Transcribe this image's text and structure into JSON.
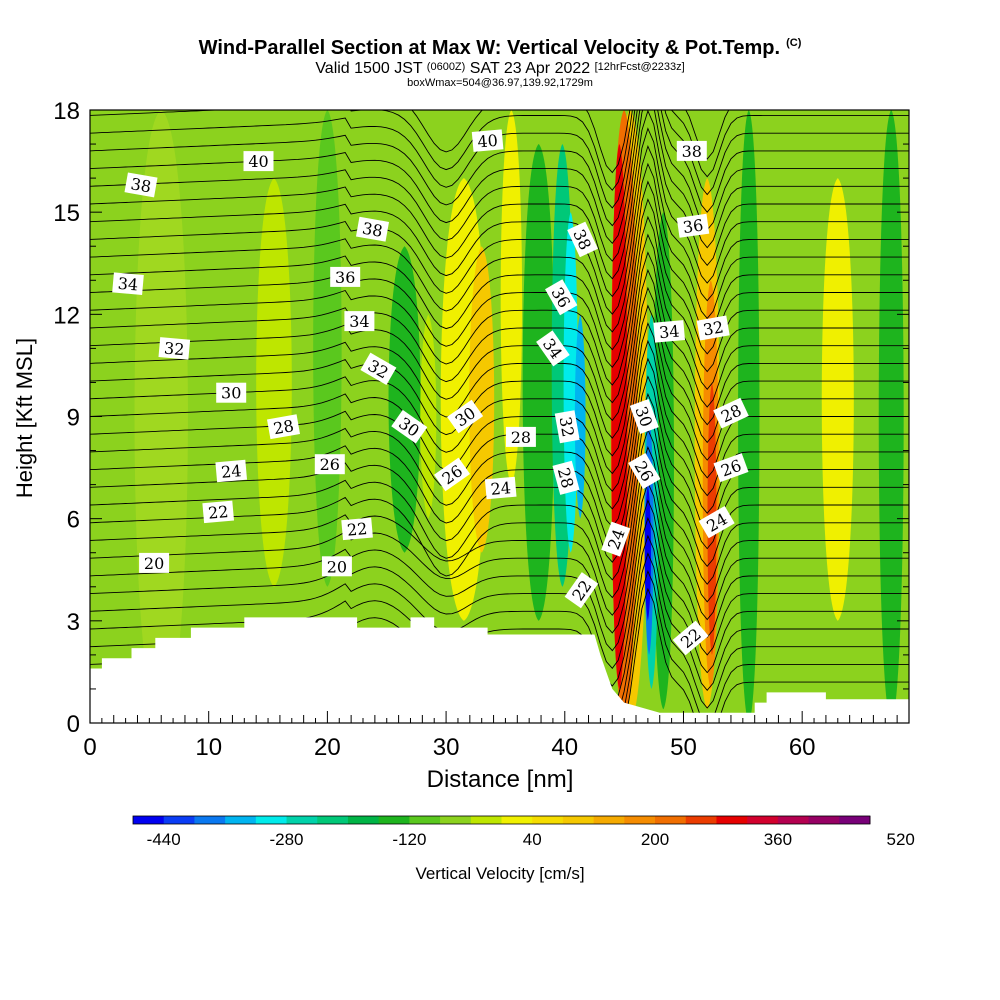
{
  "header": {
    "title": "Wind-Parallel Section at Max W: Vertical Velocity & Pot.Temp.",
    "copyright": "(C)",
    "valid_a": "Valid 1500 JST",
    "valid_utc": "(0600Z)",
    "valid_b": "SAT 23 Apr 2022",
    "forecast": "[12hrFcst@2233z]",
    "box_info": "boxWmax=504@36.97,139.92,1729m"
  },
  "chart_data": {
    "type": "heatmap",
    "title": "Wind-Parallel Section at Max W: Vertical Velocity & Pot.Temp.",
    "xlabel": "Distance [nm]",
    "ylabel": "Height [Kft MSL]",
    "xlim": [
      0,
      69
    ],
    "ylim": [
      0,
      18
    ],
    "xticks": [
      0,
      10,
      20,
      30,
      40,
      50,
      60
    ],
    "yticks": [
      0,
      3,
      6,
      9,
      12,
      15,
      18
    ],
    "colorbar": {
      "label": "Vertical Velocity [cm/s]",
      "tick_labels": [
        -440,
        -280,
        -120,
        40,
        200,
        360,
        520
      ],
      "colors": [
        "#0000f0",
        "#0a3cf5",
        "#0a78f0",
        "#00b4f0",
        "#00ebeb",
        "#00d2aa",
        "#00c878",
        "#00b446",
        "#1eb41e",
        "#5ac81e",
        "#8cd21e",
        "#bee600",
        "#f0f000",
        "#f5dc00",
        "#f5c800",
        "#f5aa00",
        "#f58c00",
        "#f06e00",
        "#eb3c00",
        "#e60000",
        "#d2002d",
        "#b40050",
        "#960064",
        "#780078"
      ]
    },
    "topography": [
      [
        0,
        1.6
      ],
      [
        1,
        1.6
      ],
      [
        1,
        1.9
      ],
      [
        3.5,
        1.9
      ],
      [
        3.5,
        2.2
      ],
      [
        5.5,
        2.2
      ],
      [
        5.5,
        2.5
      ],
      [
        8.5,
        2.5
      ],
      [
        8.5,
        2.8
      ],
      [
        13,
        2.8
      ],
      [
        13,
        3.1
      ],
      [
        22.5,
        3.1
      ],
      [
        22.5,
        2.8
      ],
      [
        27,
        2.8
      ],
      [
        27,
        3.1
      ],
      [
        29,
        3.1
      ],
      [
        29,
        2.8
      ],
      [
        33.5,
        2.8
      ],
      [
        33.5,
        2.6
      ],
      [
        42.5,
        2.6
      ],
      [
        43,
        2
      ],
      [
        43.5,
        1.5
      ],
      [
        44,
        1
      ],
      [
        44.5,
        0.8
      ],
      [
        45,
        0.6
      ],
      [
        46,
        0.5
      ],
      [
        47,
        0.4
      ],
      [
        48,
        0.3
      ],
      [
        52,
        0.3
      ],
      [
        52.5,
        0.3
      ],
      [
        56,
        0.3
      ],
      [
        56,
        0.6
      ],
      [
        57,
        0.6
      ],
      [
        57,
        0.9
      ],
      [
        62,
        0.9
      ],
      [
        62,
        0.7
      ],
      [
        69,
        0.7
      ]
    ],
    "theta_contour_labels": [
      {
        "text": "38",
        "x": 4.3,
        "y": 15.8,
        "r": 10
      },
      {
        "text": "40",
        "x": 14.2,
        "y": 16.5,
        "r": 0
      },
      {
        "text": "40",
        "x": 33.5,
        "y": 17.1,
        "r": -5
      },
      {
        "text": "38",
        "x": 50.7,
        "y": 16.8,
        "r": 0
      },
      {
        "text": "38",
        "x": 23.8,
        "y": 14.5,
        "r": 10
      },
      {
        "text": "36",
        "x": 50.8,
        "y": 14.6,
        "r": -8
      },
      {
        "text": "38",
        "x": 41.5,
        "y": 14.2,
        "r": 65
      },
      {
        "text": "34",
        "x": 3.2,
        "y": 12.9,
        "r": 5
      },
      {
        "text": "36",
        "x": 21.5,
        "y": 13.1,
        "r": 0
      },
      {
        "text": "36",
        "x": 39.7,
        "y": 12.5,
        "r": 60
      },
      {
        "text": "34",
        "x": 22.7,
        "y": 11.8,
        "r": 0
      },
      {
        "text": "34",
        "x": 48.8,
        "y": 11.5,
        "r": -5
      },
      {
        "text": "32",
        "x": 52.5,
        "y": 11.6,
        "r": -10
      },
      {
        "text": "32",
        "x": 7.1,
        "y": 11.0,
        "r": 5
      },
      {
        "text": "34",
        "x": 39.0,
        "y": 11.0,
        "r": 55
      },
      {
        "text": "32",
        "x": 24.3,
        "y": 10.4,
        "r": 30
      },
      {
        "text": "30",
        "x": 11.9,
        "y": 9.7,
        "r": 0
      },
      {
        "text": "30",
        "x": 26.9,
        "y": 8.7,
        "r": 35
      },
      {
        "text": "30",
        "x": 31.6,
        "y": 9.0,
        "r": -35
      },
      {
        "text": "28",
        "x": 16.3,
        "y": 8.7,
        "r": -10
      },
      {
        "text": "28",
        "x": 36.3,
        "y": 8.4,
        "r": 0
      },
      {
        "text": "32",
        "x": 40.2,
        "y": 8.7,
        "r": 80
      },
      {
        "text": "30",
        "x": 46.7,
        "y": 9.0,
        "r": 70
      },
      {
        "text": "28",
        "x": 54.0,
        "y": 9.1,
        "r": -25
      },
      {
        "text": "26",
        "x": 20.2,
        "y": 7.6,
        "r": 0
      },
      {
        "text": "24",
        "x": 11.9,
        "y": 7.4,
        "r": -5
      },
      {
        "text": "28",
        "x": 40.1,
        "y": 7.2,
        "r": 75
      },
      {
        "text": "26",
        "x": 46.7,
        "y": 7.4,
        "r": 60
      },
      {
        "text": "26",
        "x": 54.0,
        "y": 7.5,
        "r": -20
      },
      {
        "text": "26",
        "x": 30.5,
        "y": 7.3,
        "r": -35
      },
      {
        "text": "24",
        "x": 34.6,
        "y": 6.9,
        "r": -5
      },
      {
        "text": "22",
        "x": 10.8,
        "y": 6.2,
        "r": -5
      },
      {
        "text": "24",
        "x": 52.8,
        "y": 5.9,
        "r": -30
      },
      {
        "text": "22",
        "x": 22.5,
        "y": 5.7,
        "r": -5
      },
      {
        "text": "24",
        "x": 44.3,
        "y": 5.4,
        "r": -70
      },
      {
        "text": "20",
        "x": 5.4,
        "y": 4.7,
        "r": 0
      },
      {
        "text": "20",
        "x": 20.8,
        "y": 4.6,
        "r": 0
      },
      {
        "text": "22",
        "x": 41.4,
        "y": 3.9,
        "r": -55
      },
      {
        "text": "22",
        "x": 50.6,
        "y": 2.5,
        "r": -40
      }
    ]
  }
}
